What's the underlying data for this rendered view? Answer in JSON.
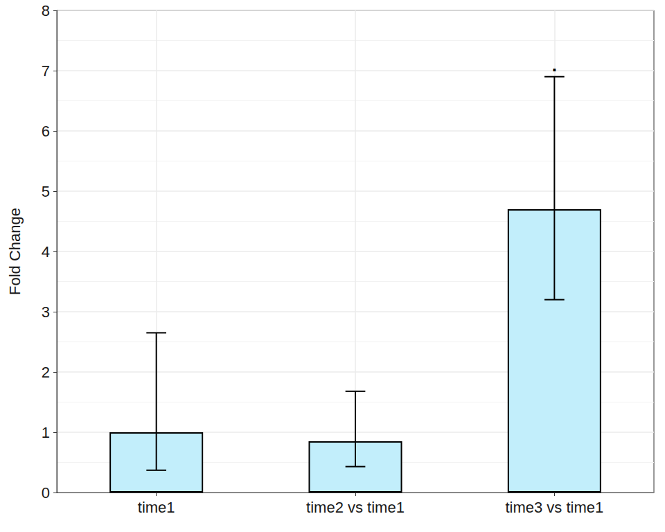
{
  "chart_data": {
    "type": "bar",
    "y_label": "Fold Change",
    "categories": [
      "time1",
      "time2 vs time1",
      "time3 vs time1"
    ],
    "values": [
      1.0,
      0.85,
      4.7
    ],
    "error_low": [
      0.37,
      0.43,
      3.2
    ],
    "error_high": [
      2.65,
      1.68,
      6.9
    ],
    "significance": [
      null,
      null,
      "."
    ],
    "color": "#c2eefb",
    "ylim": [
      0,
      8
    ],
    "yticks": [
      0,
      1,
      2,
      3,
      4,
      5,
      6,
      7,
      8
    ],
    "grid": true
  }
}
